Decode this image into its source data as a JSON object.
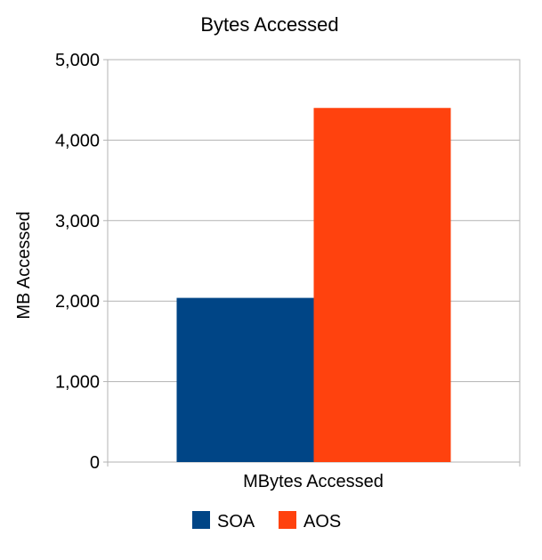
{
  "chart_data": {
    "type": "bar",
    "title": "Bytes Accessed",
    "xlabel": "MBytes Accessed",
    "ylabel": "MB Accessed",
    "categories": [
      "MBytes Accessed"
    ],
    "series": [
      {
        "name": "SOA",
        "values": [
          2040
        ],
        "color": "#004586"
      },
      {
        "name": "AOS",
        "values": [
          4400
        ],
        "color": "#ff420e"
      }
    ],
    "ylim": [
      0,
      5000
    ],
    "yticks": [
      0,
      1000,
      2000,
      3000,
      4000,
      5000
    ],
    "ytick_labels": [
      "0",
      "1,000",
      "2,000",
      "3,000",
      "4,000",
      "5,000"
    ],
    "grid": true,
    "legend_position": "bottom"
  }
}
